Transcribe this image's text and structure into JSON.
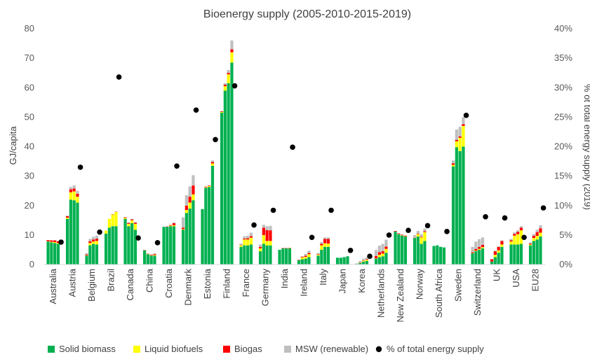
{
  "chart_data": {
    "type": "bar",
    "stacked": true,
    "title": "Bioenergy supply (2005-2010-2015-2019)",
    "ylabel": "GJ/capita",
    "y2label": "% ot total energy supply (2019)",
    "ylim": [
      0,
      80
    ],
    "yticks": [
      "0",
      "10",
      "20",
      "30",
      "40",
      "50",
      "60",
      "70",
      "80"
    ],
    "y2lim": [
      0,
      40
    ],
    "y2ticks": [
      "0%",
      "5%",
      "10%",
      "15%",
      "20%",
      "25%",
      "30%",
      "35%",
      "40%"
    ],
    "years": [
      "2005",
      "2010",
      "2015",
      "2019"
    ],
    "grid": false,
    "legend_position": "bottom",
    "series": [
      {
        "name": "Solid biomass",
        "color": "#00b050",
        "kind": "bar"
      },
      {
        "name": "Liquid biofuels",
        "color": "#ffff00",
        "kind": "bar"
      },
      {
        "name": "Biogas",
        "color": "#ff0000",
        "kind": "bar"
      },
      {
        "name": "MSW (renewable)",
        "color": "#bfbfbf",
        "kind": "bar"
      },
      {
        "name": "% of total energy supply",
        "color": "#000000",
        "kind": "marker",
        "axis": "secondary"
      }
    ],
    "categories": [
      {
        "name": "Australia",
        "pct": 3.8,
        "bars": [
          [
            7.8,
            0.1,
            0.4,
            0
          ],
          [
            7.5,
            0.2,
            0.5,
            0
          ],
          [
            7.3,
            0.3,
            0.6,
            0
          ],
          [
            7.0,
            0.3,
            0.6,
            0
          ]
        ]
      },
      {
        "name": "Austria",
        "pct": 16.5,
        "bars": [
          [
            15.5,
            0.4,
            0.5,
            0.2
          ],
          [
            22.0,
            2.5,
            1.0,
            0.8
          ],
          [
            21.8,
            3.0,
            1.0,
            1.0
          ],
          [
            21.0,
            2.0,
            1.0,
            1.0
          ]
        ]
      },
      {
        "name": "Belgium",
        "pct": 5.5,
        "bars": [
          [
            3.0,
            0.1,
            0.3,
            0.5
          ],
          [
            6.5,
            0.8,
            0.6,
            0.8
          ],
          [
            7.0,
            0.8,
            0.7,
            0.9
          ],
          [
            6.8,
            1.2,
            0.8,
            1.0
          ]
        ]
      },
      {
        "name": "Brazil",
        "pct": 31.8,
        "bars": [
          [
            10.5,
            1.0,
            0,
            0
          ],
          [
            12.5,
            3.0,
            0,
            0
          ],
          [
            13.0,
            4.0,
            0.1,
            0
          ],
          [
            13.0,
            4.8,
            0.1,
            0
          ]
        ]
      },
      {
        "name": "Canada",
        "pct": 4.5,
        "bars": [
          [
            15.5,
            0.3,
            0.2,
            0.1
          ],
          [
            13.0,
            0.8,
            0.3,
            0.2
          ],
          [
            14.0,
            1.0,
            0.3,
            0.2
          ],
          [
            11.8,
            2.0,
            0.4,
            0.2
          ]
        ]
      },
      {
        "name": "China",
        "pct": 3.7,
        "bars": [
          [
            4.8,
            0,
            0.1,
            0
          ],
          [
            3.5,
            0.1,
            0.1,
            0
          ],
          [
            3.0,
            0.1,
            0.2,
            0.1
          ],
          [
            3.0,
            0.2,
            0.3,
            0.3
          ]
        ]
      },
      {
        "name": "Croatia",
        "pct": 16.7,
        "bars": [
          [
            12.8,
            0,
            0,
            0
          ],
          [
            12.8,
            0,
            0.1,
            0
          ],
          [
            13.0,
            0.2,
            0.2,
            0
          ],
          [
            13.0,
            0.3,
            0.7,
            0.3
          ]
        ]
      },
      {
        "name": "Denmark",
        "pct": 26.2,
        "bars": [
          [
            11.8,
            0.2,
            0.5,
            3.5
          ],
          [
            17.5,
            1.0,
            1.5,
            3.5
          ],
          [
            19.0,
            2.0,
            2.0,
            3.5
          ],
          [
            21.8,
            2.0,
            3.0,
            3.5
          ]
        ]
      },
      {
        "name": "Estonia",
        "pct": 21.2,
        "bars": [
          [
            18.8,
            0,
            0,
            0
          ],
          [
            26.0,
            0.2,
            0.2,
            0
          ],
          [
            26.3,
            0.3,
            0.2,
            0
          ],
          [
            33.5,
            0.8,
            0.5,
            0.5
          ]
        ]
      },
      {
        "name": "Finland",
        "pct": 30.3,
        "bars": [
          [
            51.5,
            0.3,
            0.2,
            0
          ],
          [
            59.0,
            1.5,
            0.5,
            0.5
          ],
          [
            61.5,
            3.0,
            0.5,
            1.0
          ],
          [
            68.5,
            3.5,
            1.0,
            3.0
          ]
        ]
      },
      {
        "name": "France",
        "pct": 6.7,
        "bars": [
          [
            6.0,
            0.5,
            0.1,
            0.5
          ],
          [
            6.5,
            2.0,
            0.3,
            0.8
          ],
          [
            6.5,
            2.0,
            0.4,
            0.9
          ],
          [
            6.8,
            2.3,
            0.5,
            1.2
          ]
        ]
      },
      {
        "name": "Germany",
        "pct": 9.2,
        "bars": [
          [
            4.5,
            1.0,
            0.5,
            0.8
          ],
          [
            7.0,
            3.0,
            2.5,
            1.0
          ],
          [
            6.5,
            1.5,
            3.7,
            1.3
          ],
          [
            6.5,
            1.5,
            3.6,
            1.5
          ]
        ]
      },
      {
        "name": "India",
        "pct": 19.9,
        "bars": [
          [
            5.0,
            0,
            0,
            0
          ],
          [
            5.5,
            0,
            0.1,
            0
          ],
          [
            5.5,
            0,
            0.1,
            0
          ],
          [
            5.5,
            0.1,
            0.1,
            0
          ]
        ]
      },
      {
        "name": "Ireland",
        "pct": 4.6,
        "bars": [
          [
            1.5,
            0,
            0.1,
            0
          ],
          [
            1.8,
            0.6,
            0.2,
            0.2
          ],
          [
            2.0,
            0.6,
            0.4,
            0.6
          ],
          [
            2.5,
            1.0,
            0.4,
            0.8
          ]
        ]
      },
      {
        "name": "Italy",
        "pct": 9.2,
        "bars": [
          [
            3.0,
            0.3,
            0.2,
            0.4
          ],
          [
            5.0,
            1.5,
            0.5,
            0.6
          ],
          [
            6.0,
            1.2,
            1.5,
            0.5
          ],
          [
            6.0,
            1.1,
            1.6,
            0.5
          ]
        ]
      },
      {
        "name": "Japan",
        "pct": 2.4,
        "bars": [
          [
            2.3,
            0,
            0,
            0
          ],
          [
            2.3,
            0,
            0,
            0
          ],
          [
            2.5,
            0,
            0,
            0
          ],
          [
            2.8,
            0,
            0,
            0
          ]
        ]
      },
      {
        "name": "Korea",
        "pct": 1.4,
        "bars": [
          [
            0.2,
            0,
            0,
            0.2
          ],
          [
            0.5,
            0.1,
            0.1,
            0.5
          ],
          [
            1.0,
            0.3,
            0.1,
            0.6
          ],
          [
            1.2,
            0.4,
            0.2,
            0.6
          ]
        ]
      },
      {
        "name": "Netherlands",
        "pct": 5.0,
        "bars": [
          [
            2.0,
            0.1,
            0.8,
            2.0
          ],
          [
            2.5,
            0.8,
            0.9,
            2.2
          ],
          [
            2.8,
            0.9,
            0.8,
            2.5
          ],
          [
            4.0,
            1.3,
            0.8,
            2.3
          ]
        ]
      },
      {
        "name": "New Zealand",
        "pct": 5.8,
        "bars": [
          [
            11.2,
            0,
            0.2,
            0
          ],
          [
            10.3,
            0.1,
            0.2,
            0
          ],
          [
            9.8,
            0.1,
            0.2,
            0
          ],
          [
            9.5,
            0.1,
            0.2,
            0
          ]
        ]
      },
      {
        "name": "Norway",
        "pct": 6.6,
        "bars": [
          [
            9.0,
            0.1,
            0.1,
            0.8
          ],
          [
            9.5,
            0.8,
            0.2,
            0.9
          ],
          [
            7.0,
            2.2,
            0.2,
            0.9
          ],
          [
            8.0,
            3.0,
            0.3,
            0.9
          ]
        ]
      },
      {
        "name": "South Africa",
        "pct": 5.6,
        "bars": [
          [
            6.3,
            0,
            0,
            0
          ],
          [
            6.5,
            0,
            0,
            0
          ],
          [
            6.0,
            0,
            0,
            0
          ],
          [
            5.8,
            0,
            0,
            0
          ]
        ]
      },
      {
        "name": "Sweden",
        "pct": 25.3,
        "bars": [
          [
            33.3,
            0.5,
            0.5,
            1.0
          ],
          [
            39.8,
            2.0,
            0.5,
            3.5
          ],
          [
            38.5,
            4.5,
            0.5,
            3.2
          ],
          [
            40.0,
            7.0,
            0.6,
            2.4
          ]
        ]
      },
      {
        "name": "Switzerland",
        "pct": 8.1,
        "bars": [
          [
            3.8,
            0.1,
            0.3,
            1.8
          ],
          [
            4.5,
            0.2,
            0.6,
            2.5
          ],
          [
            5.0,
            0.3,
            0.7,
            2.6
          ],
          [
            5.5,
            0.4,
            0.8,
            2.5
          ]
        ]
      },
      {
        "name": "UK",
        "pct": 7.9,
        "bars": [
          [
            1.0,
            0,
            0.8,
            0
          ],
          [
            2.5,
            0.8,
            1.2,
            0.2
          ],
          [
            4.0,
            0.8,
            1.2,
            0.2
          ],
          [
            6.0,
            0.8,
            1.2,
            0.2
          ]
        ]
      },
      {
        "name": "USA",
        "pct": 4.6,
        "bars": [
          [
            6.8,
            1.0,
            0.4,
            0.5
          ],
          [
            6.8,
            3.0,
            0.6,
            0.5
          ],
          [
            6.8,
            3.5,
            0.8,
            0.5
          ],
          [
            7.0,
            4.6,
            0.9,
            0.5
          ]
        ]
      },
      {
        "name": "EU28",
        "pct": 9.6,
        "bars": [
          [
            6.5,
            0.3,
            0.3,
            0.4
          ],
          [
            8.0,
            1.0,
            0.8,
            0.5
          ],
          [
            8.5,
            1.2,
            1.3,
            0.8
          ],
          [
            9.5,
            1.3,
            1.5,
            1.0
          ]
        ]
      }
    ]
  }
}
